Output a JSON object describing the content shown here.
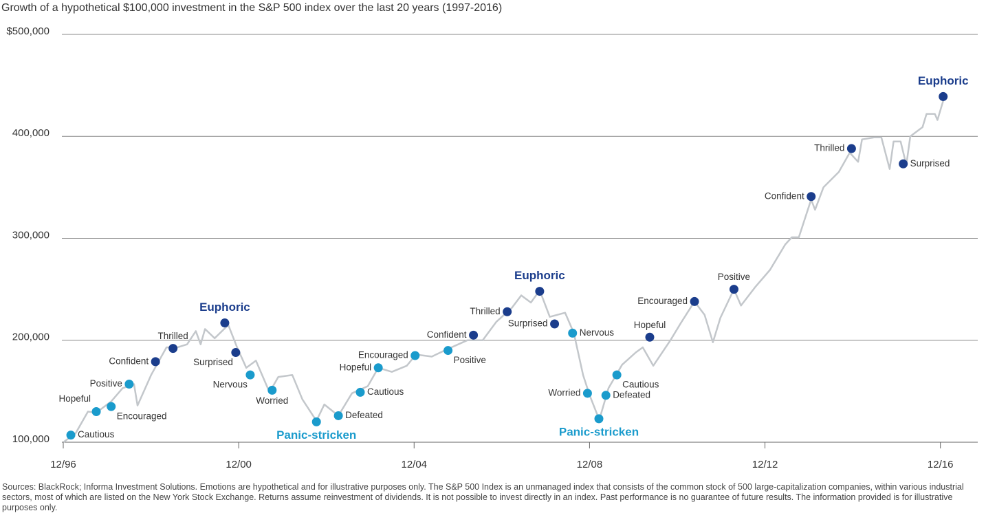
{
  "chart_data": {
    "type": "line",
    "title": "Growth of a hypothetical $100,000 investment in the S&P 500 index over the last 20 years (1997-2016)",
    "footnote": "Sources: BlackRock; Informa Investment Solutions. Emotions are hypothetical and for illustrative purposes only. The S&P 500 Index is an unmanaged index that consists of the common stock of 500 large-capitalization companies, within various industrial sectors, most of which are listed on the New York Stock Exchange. Returns assume reinvestment of dividends. It is not possible to invest directly in an index. Past performance is no guarantee of future results. The information provided is for illustrative purposes only.",
    "x": [
      1996.92,
      1997.2,
      1997.48,
      1997.67,
      1998.01,
      1998.27,
      1998.53,
      1998.61,
      1998.92,
      1999.27,
      1999.52,
      1999.74,
      1999.94,
      2000.05,
      2000.15,
      2000.37,
      2000.68,
      2000.88,
      2001.09,
      2001.31,
      2001.62,
      2001.82,
      2002.14,
      2002.37,
      2002.69,
      2002.87,
      2003.19,
      2003.5,
      2003.86,
      2004.1,
      2004.41,
      2004.75,
      2004.96,
      2005.32,
      2005.66,
      2006.13,
      2006.48,
      2006.79,
      2007.15,
      2007.36,
      2007.58,
      2007.78,
      2008.01,
      2008.36,
      2008.56,
      2008.77,
      2008.92,
      2009.14,
      2009.35,
      2009.66,
      2009.97,
      2010.13,
      2010.37,
      2010.76,
      2011.0,
      2011.31,
      2011.54,
      2011.73,
      2011.9,
      2012.21,
      2012.37,
      2012.69,
      2013.03,
      2013.38,
      2013.53,
      2013.69,
      2013.97,
      2014.06,
      2014.25,
      2014.6,
      2014.85,
      2015.04,
      2015.13,
      2015.41,
      2015.57,
      2015.76,
      2015.85,
      2016.01,
      2016.14,
      2016.23,
      2016.51,
      2016.6,
      2016.79,
      2016.85,
      2017.01
    ],
    "series": [
      {
        "color": "#c3c7cb",
        "values": [
          100000,
          109000,
          130000,
          129000,
          140000,
          153000,
          157000,
          136000,
          166000,
          193000,
          193000,
          196000,
          209000,
          196000,
          211000,
          202000,
          215000,
          193000,
          173000,
          180000,
          149000,
          164000,
          166000,
          142000,
          121000,
          137000,
          126000,
          148000,
          155000,
          173000,
          169000,
          175000,
          186000,
          184000,
          191000,
          200000,
          200000,
          218000,
          232000,
          244000,
          237000,
          249000,
          223000,
          227000,
          207000,
          166000,
          146000,
          122000,
          153000,
          176000,
          188000,
          193000,
          175000,
          200000,
          217000,
          238000,
          225000,
          198000,
          222000,
          250000,
          234000,
          252000,
          269000,
          294000,
          301000,
          301000,
          338000,
          328000,
          350000,
          365000,
          384000,
          375000,
          397000,
          399000,
          399000,
          368000,
          395000,
          395000,
          372000,
          400000,
          409000,
          422000,
          422000,
          416000,
          439000
        ]
      }
    ],
    "points": [
      {
        "label": "Cautious",
        "x": 1997.09,
        "value": 107000,
        "color": "#1a9bcc",
        "pos": "right"
      },
      {
        "label": "Hopeful",
        "x": 1997.67,
        "value": 130000,
        "color": "#1a9bcc",
        "pos": "above-left"
      },
      {
        "label": "Encouraged",
        "x": 1998.01,
        "value": 135000,
        "color": "#1a9bcc",
        "pos": "below-right"
      },
      {
        "label": "Positive",
        "x": 1998.42,
        "value": 157000,
        "color": "#1a9bcc",
        "pos": "left"
      },
      {
        "label": "Confident",
        "x": 1999.02,
        "value": 179000,
        "color": "#1b3d8c",
        "pos": "left"
      },
      {
        "label": "Thrilled",
        "x": 1999.42,
        "value": 192000,
        "color": "#1b3d8c",
        "pos": "above"
      },
      {
        "label": "Euphoric",
        "x": 2000.6,
        "value": 217000,
        "color": "#1b3d8c",
        "pos": "above",
        "size": "large"
      },
      {
        "label": "Surprised",
        "x": 2000.85,
        "value": 188000,
        "color": "#1b3d8c",
        "pos": "below-left"
      },
      {
        "label": "Nervous",
        "x": 2001.18,
        "value": 166000,
        "color": "#1a9bcc",
        "pos": "below-left"
      },
      {
        "label": "Worried",
        "x": 2001.68,
        "value": 151000,
        "color": "#1a9bcc",
        "pos": "below"
      },
      {
        "label": "Panic-stricken",
        "x": 2002.69,
        "value": 120000,
        "color": "#1a9bcc",
        "pos": "below",
        "size": "large"
      },
      {
        "label": "Defeated",
        "x": 2003.19,
        "value": 126000,
        "color": "#1a9bcc",
        "pos": "right"
      },
      {
        "label": "Cautious",
        "x": 2003.69,
        "value": 149000,
        "color": "#1a9bcc",
        "pos": "right"
      },
      {
        "label": "Hopeful",
        "x": 2004.1,
        "value": 173000,
        "color": "#1a9bcc",
        "pos": "left"
      },
      {
        "label": "Encouraged",
        "x": 2004.94,
        "value": 185000,
        "color": "#1a9bcc",
        "pos": "left"
      },
      {
        "label": "Positive",
        "x": 2005.69,
        "value": 190000,
        "color": "#1a9bcc",
        "pos": "below-right"
      },
      {
        "label": "Confident",
        "x": 2006.27,
        "value": 205000,
        "color": "#1b3d8c",
        "pos": "left"
      },
      {
        "label": "Thrilled",
        "x": 2007.04,
        "value": 228000,
        "color": "#1b3d8c",
        "pos": "left"
      },
      {
        "label": "Euphoric",
        "x": 2007.78,
        "value": 248000,
        "color": "#1b3d8c",
        "pos": "above",
        "size": "large"
      },
      {
        "label": "Surprised",
        "x": 2008.12,
        "value": 216000,
        "color": "#1b3d8c",
        "pos": "left"
      },
      {
        "label": "Nervous",
        "x": 2008.53,
        "value": 207000,
        "color": "#1a9bcc",
        "pos": "right"
      },
      {
        "label": "Worried",
        "x": 2008.87,
        "value": 148000,
        "color": "#1a9bcc",
        "pos": "left"
      },
      {
        "label": "Panic-stricken",
        "x": 2009.13,
        "value": 123000,
        "color": "#1a9bcc",
        "pos": "below",
        "size": "large"
      },
      {
        "label": "Defeated",
        "x": 2009.29,
        "value": 146000,
        "color": "#1a9bcc",
        "pos": "right"
      },
      {
        "label": "Cautious",
        "x": 2009.54,
        "value": 166000,
        "color": "#1a9bcc",
        "pos": "below-right"
      },
      {
        "label": "Hopeful",
        "x": 2010.29,
        "value": 203000,
        "color": "#1b3d8c",
        "pos": "above"
      },
      {
        "label": "Encouraged",
        "x": 2011.31,
        "value": 238000,
        "color": "#1b3d8c",
        "pos": "left"
      },
      {
        "label": "Positive",
        "x": 2012.21,
        "value": 250000,
        "color": "#1b3d8c",
        "pos": "above"
      },
      {
        "label": "Confident",
        "x": 2013.97,
        "value": 341000,
        "color": "#1b3d8c",
        "pos": "left"
      },
      {
        "label": "Thrilled",
        "x": 2014.89,
        "value": 388000,
        "color": "#1b3d8c",
        "pos": "left"
      },
      {
        "label": "Surprised",
        "x": 2016.07,
        "value": 373000,
        "color": "#1b3d8c",
        "pos": "right"
      },
      {
        "label": "Euphoric",
        "x": 2016.98,
        "value": 439000,
        "color": "#1b3d8c",
        "pos": "above",
        "size": "large"
      }
    ],
    "xlim": [
      1996.917,
      2017.8
    ],
    "xticks": [
      {
        "value": 1996.917,
        "label": "12/96"
      },
      {
        "value": 2000.917,
        "label": "12/00"
      },
      {
        "value": 2004.917,
        "label": "12/04"
      },
      {
        "value": 2008.917,
        "label": "12/08"
      },
      {
        "value": 2012.917,
        "label": "12/12"
      },
      {
        "value": 2016.917,
        "label": "12/16"
      }
    ],
    "ylim": [
      100000,
      500000
    ],
    "yticks": [
      {
        "value": 100000,
        "label": "100,000"
      },
      {
        "value": 200000,
        "label": "200,000"
      },
      {
        "value": 300000,
        "label": "300,000"
      },
      {
        "value": 400000,
        "label": "400,000"
      },
      {
        "value": 500000,
        "label": "$500,000"
      }
    ],
    "grid": true
  }
}
